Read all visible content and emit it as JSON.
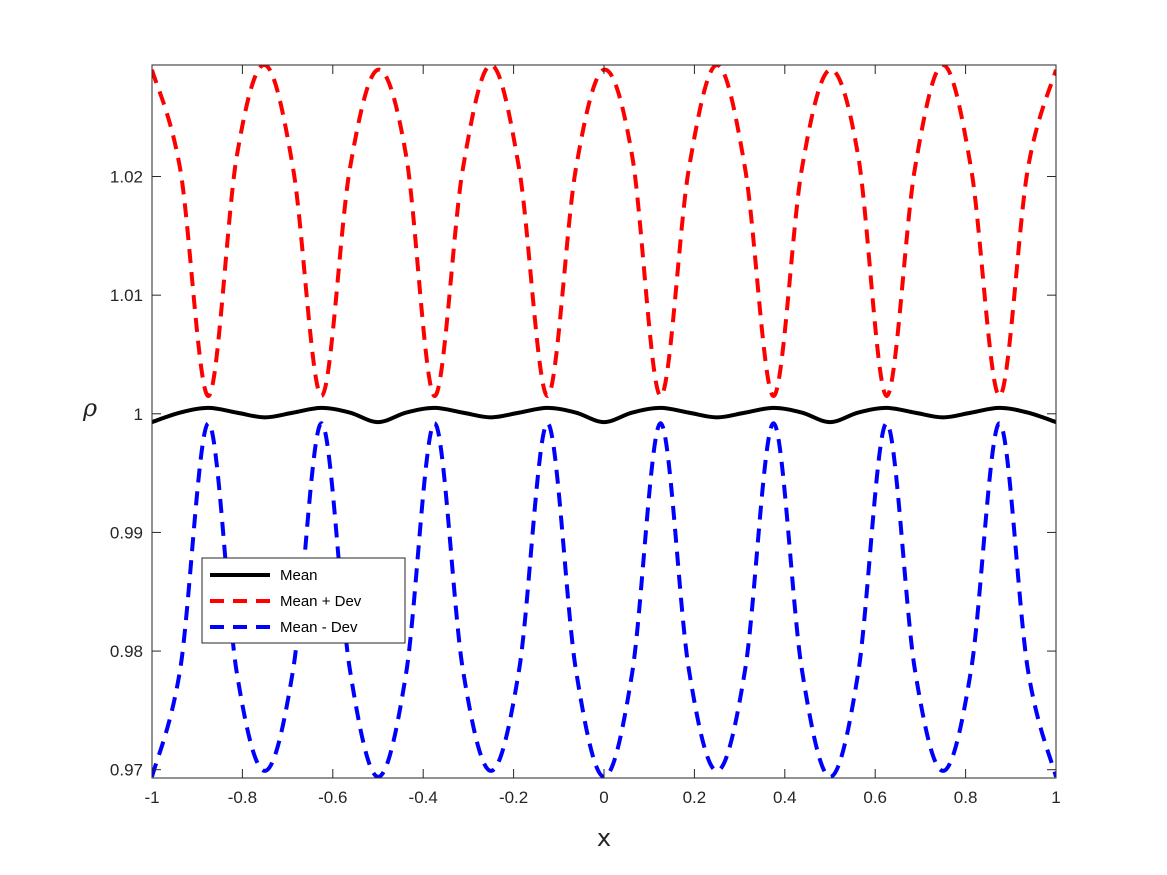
{
  "chart_data": {
    "type": "line",
    "title": "",
    "xlabel": "x",
    "ylabel": "ρ",
    "xlim": [
      -1,
      1
    ],
    "ylim": [
      0.9693,
      1.0294
    ],
    "xticks": [
      -1,
      -0.8,
      -0.6,
      -0.4,
      -0.2,
      0,
      0.2,
      0.4,
      0.6,
      0.8,
      1
    ],
    "xtick_labels": [
      "-1",
      "-0.8",
      "-0.6",
      "-0.4",
      "-0.2",
      "0",
      "0.2",
      "0.4",
      "0.6",
      "0.8",
      "1"
    ],
    "yticks": [
      0.97,
      0.98,
      0.99,
      1,
      1.01,
      1.02
    ],
    "ytick_labels": [
      "0.97",
      "0.98",
      "0.99",
      "1",
      "1.01",
      "1.02"
    ],
    "grid": false,
    "legend_position": "lower-left",
    "series": [
      {
        "name": "Mean",
        "color": "#000000",
        "style": "solid",
        "x": [
          -1,
          -0.9375,
          -0.875,
          -0.8125,
          -0.75,
          -0.6875,
          -0.625,
          -0.5625,
          -0.5,
          -0.4375,
          -0.375,
          -0.3125,
          -0.25,
          -0.1875,
          -0.125,
          -0.0625,
          0,
          0.0625,
          0.125,
          0.1875,
          0.25,
          0.3125,
          0.375,
          0.4375,
          0.5,
          0.5625,
          0.625,
          0.6875,
          0.75,
          0.8125,
          0.875,
          0.9375,
          1
        ],
        "y": [
          0.9993,
          1.0001,
          1.0005,
          1.0001,
          0.9997,
          1.0001,
          1.0005,
          1.0001,
          0.9993,
          1.0001,
          1.0005,
          1.0001,
          0.9997,
          1.0001,
          1.0005,
          1.0001,
          0.9993,
          1.0001,
          1.0005,
          1.0001,
          0.9997,
          1.0001,
          1.0005,
          1.0001,
          0.9993,
          1.0001,
          1.0005,
          1.0001,
          0.9997,
          1.0001,
          1.0005,
          1.0001,
          0.9993
        ]
      },
      {
        "name": "Mean + Dev",
        "color": "#ff0000",
        "style": "dashed",
        "x": [
          -1,
          -0.9375,
          -0.875,
          -0.8125,
          -0.75,
          -0.6875,
          -0.625,
          -0.5625,
          -0.5,
          -0.4375,
          -0.375,
          -0.3125,
          -0.25,
          -0.1875,
          -0.125,
          -0.0625,
          0,
          0.0625,
          0.125,
          0.1875,
          0.25,
          0.3125,
          0.375,
          0.4375,
          0.5,
          0.5625,
          0.625,
          0.6875,
          0.75,
          0.8125,
          0.875,
          0.9375,
          1
        ],
        "y": [
          1.029,
          1.0206,
          1.0015,
          1.0217,
          1.0294,
          1.0206,
          1.0015,
          1.0206,
          1.029,
          1.0217,
          1.0015,
          1.0206,
          1.0294,
          1.0206,
          1.0015,
          1.0206,
          1.029,
          1.0217,
          1.0015,
          1.0206,
          1.0294,
          1.0206,
          1.0015,
          1.0206,
          1.029,
          1.0217,
          1.0015,
          1.0206,
          1.0294,
          1.0206,
          1.0015,
          1.0206,
          1.029
        ]
      },
      {
        "name": "Mean - Dev",
        "color": "#0000ff",
        "style": "dashed",
        "x": [
          -1,
          -0.9375,
          -0.875,
          -0.8125,
          -0.75,
          -0.6875,
          -0.625,
          -0.5625,
          -0.5,
          -0.4375,
          -0.375,
          -0.3125,
          -0.25,
          -0.1875,
          -0.125,
          -0.0625,
          0,
          0.0625,
          0.125,
          0.1875,
          0.25,
          0.3125,
          0.375,
          0.4375,
          0.5,
          0.5625,
          0.625,
          0.6875,
          0.75,
          0.8125,
          0.875,
          0.9375,
          1
        ],
        "y": [
          0.9694,
          0.9785,
          0.9992,
          0.9782,
          0.9699,
          0.9785,
          0.9992,
          0.9785,
          0.9694,
          0.9782,
          0.9992,
          0.9785,
          0.9699,
          0.9785,
          0.9992,
          0.9785,
          0.9694,
          0.9782,
          0.9992,
          0.9785,
          0.9699,
          0.9785,
          0.9992,
          0.9785,
          0.9694,
          0.9782,
          0.9992,
          0.9785,
          0.9699,
          0.9785,
          0.9992,
          0.9785,
          0.9694
        ]
      }
    ]
  }
}
